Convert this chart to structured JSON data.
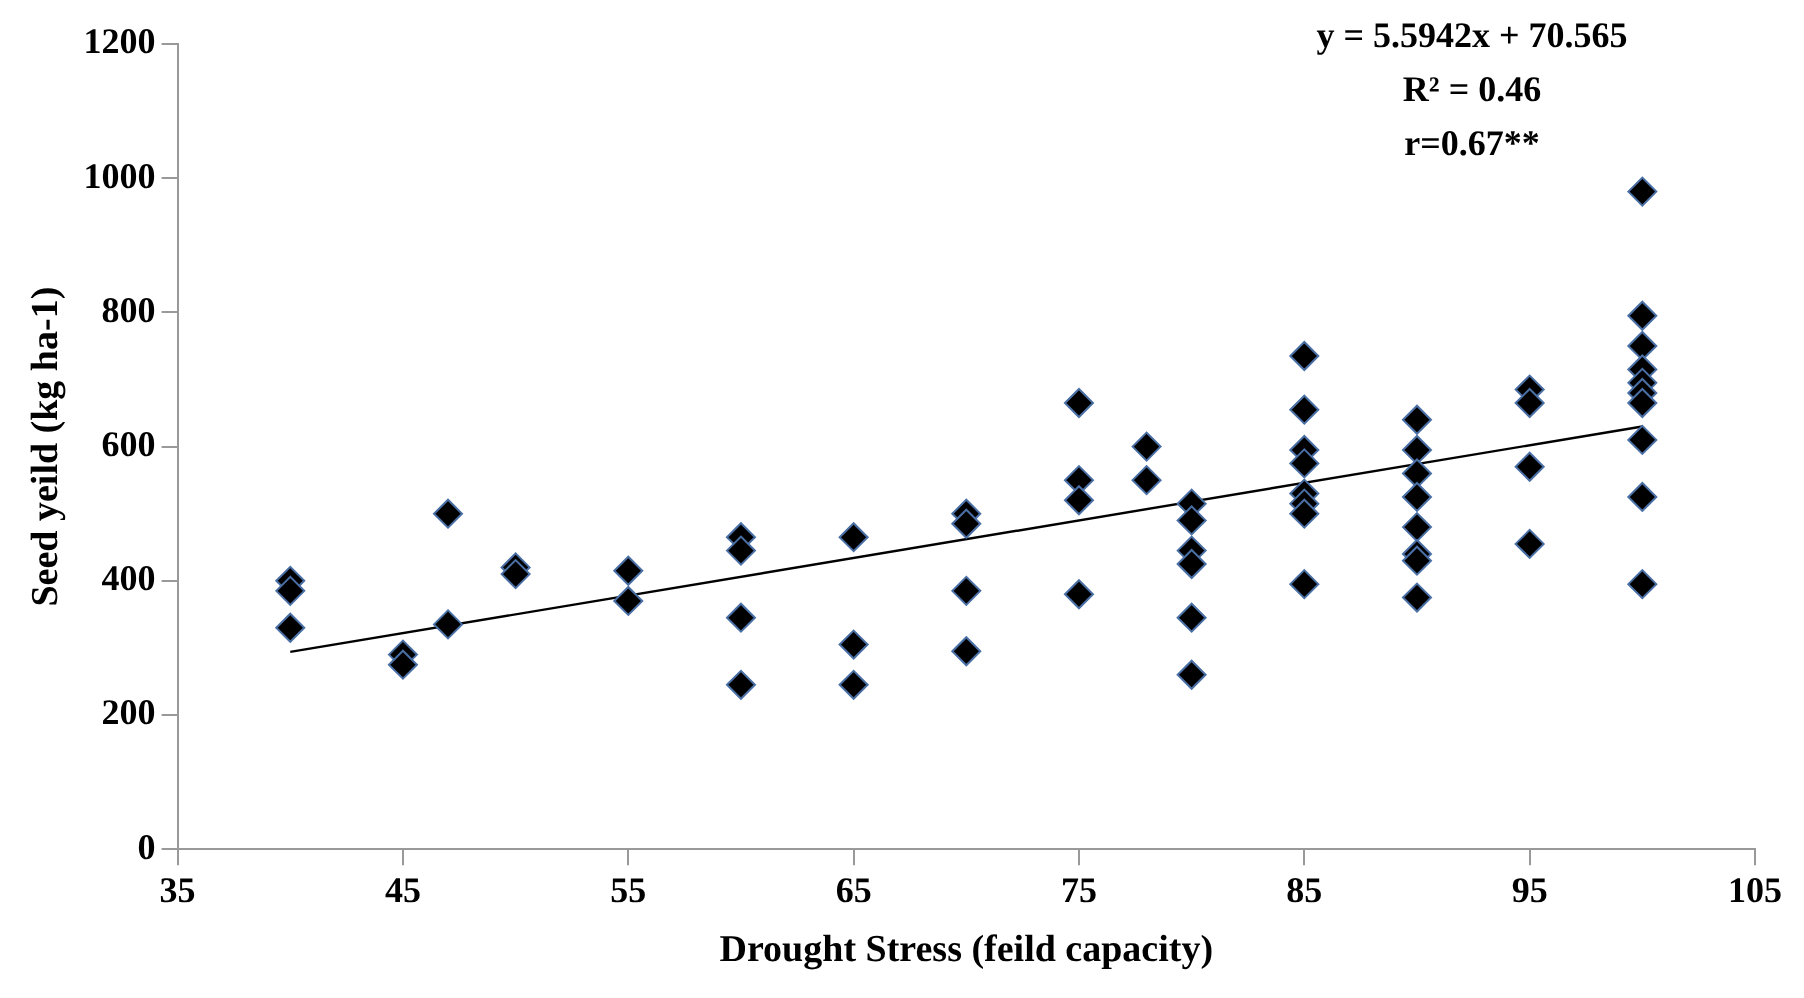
{
  "chart_data": {
    "type": "scatter",
    "xlabel": "Drought Stress (feild capacity)",
    "ylabel": "Seed yeild (kg ha-1)",
    "xlim": [
      35,
      105
    ],
    "xticks": [
      35,
      45,
      55,
      65,
      75,
      85,
      95,
      105
    ],
    "ylim": [
      0,
      1200
    ],
    "yticks": [
      0,
      200,
      400,
      600,
      800,
      1000,
      1200
    ],
    "grid": false,
    "legend": false,
    "marker": "diamond",
    "annotations": [
      "y = 5.5942x + 70.565",
      "R² = 0.46",
      "r=0.67**"
    ],
    "series": [
      {
        "type": "scatter",
        "color": "#000000",
        "x": [
          40,
          40,
          40,
          45,
          45,
          47,
          47,
          50,
          50,
          55,
          55,
          60,
          60,
          60,
          60,
          65,
          65,
          65,
          70,
          70,
          70,
          70,
          75,
          75,
          75,
          75,
          78,
          78,
          80,
          80,
          80,
          80,
          80,
          80,
          85,
          85,
          85,
          85,
          85,
          85,
          85,
          85,
          90,
          90,
          90,
          90,
          90,
          90,
          90,
          90,
          95,
          95,
          95,
          95,
          100,
          100,
          100,
          100,
          100,
          100,
          100,
          100,
          100,
          100
        ],
        "values": [
          400,
          385,
          330,
          290,
          275,
          500,
          335,
          420,
          410,
          415,
          370,
          465,
          445,
          345,
          245,
          465,
          305,
          245,
          500,
          485,
          385,
          295,
          665,
          550,
          520,
          380,
          600,
          550,
          515,
          490,
          445,
          425,
          345,
          260,
          735,
          655,
          595,
          575,
          530,
          515,
          500,
          395,
          640,
          595,
          560,
          525,
          480,
          440,
          430,
          375,
          685,
          665,
          570,
          455,
          980,
          795,
          750,
          715,
          695,
          680,
          665,
          610,
          525,
          395
        ]
      },
      {
        "type": "line",
        "color": "#000000",
        "x": [
          40,
          100
        ],
        "values": [
          294,
          630
        ],
        "marker": "none",
        "line_style": "solid"
      }
    ]
  }
}
